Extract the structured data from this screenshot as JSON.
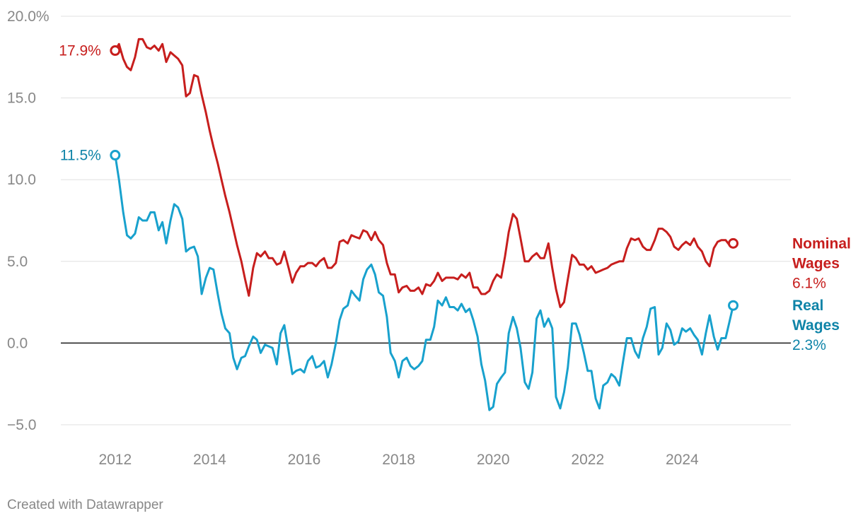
{
  "chart_data": {
    "type": "line",
    "title": "",
    "xlabel": "",
    "ylabel": "",
    "xlim": [
      2010.85,
      2026.3
    ],
    "ylim": [
      -5.8,
      20.0
    ],
    "x_ticks": [
      2012,
      2014,
      2016,
      2018,
      2020,
      2022,
      2024
    ],
    "x_tick_labels": [
      "2012",
      "2014",
      "2016",
      "2018",
      "2020",
      "2022",
      "2024"
    ],
    "y_ticks": [
      20,
      15,
      10,
      5,
      0,
      -5
    ],
    "y_tick_labels": [
      "20.0%",
      "15.0",
      "10.0",
      "5.0",
      "0.0",
      "−5.0"
    ],
    "zero_line": true,
    "grid": true,
    "series": [
      {
        "name_lines": [
          "Nominal",
          "Wages"
        ],
        "color": "#c71e1d",
        "start_label": "17.9%",
        "end_label": "6.1%",
        "x": [
          2012.0,
          2012.08,
          2012.17,
          2012.25,
          2012.33,
          2012.42,
          2012.5,
          2012.58,
          2012.67,
          2012.75,
          2012.83,
          2012.92,
          2013.0,
          2013.08,
          2013.17,
          2013.25,
          2013.33,
          2013.42,
          2013.5,
          2013.58,
          2013.67,
          2013.75,
          2013.83,
          2013.92,
          2014.0,
          2014.08,
          2014.17,
          2014.25,
          2014.33,
          2014.42,
          2014.5,
          2014.58,
          2014.67,
          2014.75,
          2014.83,
          2014.92,
          2015.0,
          2015.08,
          2015.17,
          2015.25,
          2015.33,
          2015.42,
          2015.5,
          2015.58,
          2015.67,
          2015.75,
          2015.83,
          2015.92,
          2016.0,
          2016.08,
          2016.17,
          2016.25,
          2016.33,
          2016.42,
          2016.5,
          2016.58,
          2016.67,
          2016.75,
          2016.83,
          2016.92,
          2017.0,
          2017.08,
          2017.17,
          2017.25,
          2017.33,
          2017.42,
          2017.5,
          2017.58,
          2017.67,
          2017.75,
          2017.83,
          2017.92,
          2018.0,
          2018.08,
          2018.17,
          2018.25,
          2018.33,
          2018.42,
          2018.5,
          2018.58,
          2018.67,
          2018.75,
          2018.83,
          2018.92,
          2019.0,
          2019.08,
          2019.17,
          2019.25,
          2019.33,
          2019.42,
          2019.5,
          2019.58,
          2019.67,
          2019.75,
          2019.83,
          2019.92,
          2020.0,
          2020.08,
          2020.17,
          2020.25,
          2020.33,
          2020.42,
          2020.5,
          2020.58,
          2020.67,
          2020.75,
          2020.83,
          2020.92,
          2021.0,
          2021.08,
          2021.17,
          2021.25,
          2021.33,
          2021.42,
          2021.5,
          2021.58,
          2021.67,
          2021.75,
          2021.83,
          2021.92,
          2022.0,
          2022.08,
          2022.17,
          2022.25,
          2022.33,
          2022.42,
          2022.5,
          2022.58,
          2022.67,
          2022.75,
          2022.83,
          2022.92,
          2023.0,
          2023.08,
          2023.17,
          2023.25,
          2023.33,
          2023.42,
          2023.5,
          2023.58,
          2023.67,
          2023.75,
          2023.83,
          2023.92,
          2024.0,
          2024.08,
          2024.17,
          2024.25,
          2024.33,
          2024.42,
          2024.5,
          2024.58,
          2024.67,
          2024.75,
          2024.83,
          2024.92,
          2025.0,
          2025.08
        ],
        "values": [
          17.9,
          18.3,
          17.4,
          16.9,
          16.7,
          17.5,
          18.6,
          18.6,
          18.1,
          18.0,
          18.2,
          17.9,
          18.3,
          17.2,
          17.8,
          17.6,
          17.4,
          17.0,
          15.1,
          15.3,
          16.4,
          16.3,
          15.2,
          14.1,
          13.0,
          12.0,
          11.0,
          10.0,
          9.0,
          8.0,
          7.0,
          6.0,
          5.0,
          3.9,
          2.9,
          4.6,
          5.5,
          5.3,
          5.6,
          5.2,
          5.2,
          4.8,
          4.9,
          5.6,
          4.6,
          3.7,
          4.3,
          4.7,
          4.7,
          4.9,
          4.9,
          4.7,
          5.0,
          5.2,
          4.6,
          4.6,
          4.9,
          6.2,
          6.3,
          6.1,
          6.6,
          6.5,
          6.4,
          6.9,
          6.8,
          6.3,
          6.8,
          6.3,
          6.0,
          4.9,
          4.2,
          4.2,
          3.1,
          3.4,
          3.5,
          3.2,
          3.2,
          3.4,
          3.0,
          3.6,
          3.5,
          3.8,
          4.3,
          3.8,
          4.0,
          4.0,
          4.0,
          3.9,
          4.2,
          4.0,
          4.3,
          3.4,
          3.4,
          3.0,
          3.0,
          3.2,
          3.8,
          4.2,
          4.0,
          5.3,
          6.8,
          7.9,
          7.6,
          6.4,
          5.0,
          5.0,
          5.3,
          5.5,
          5.2,
          5.2,
          6.1,
          4.6,
          3.3,
          2.2,
          2.5,
          3.9,
          5.4,
          5.2,
          4.8,
          4.8,
          4.5,
          4.7,
          4.3,
          4.4,
          4.5,
          4.6,
          4.8,
          4.9,
          5.0,
          5.0,
          5.8,
          6.4,
          6.3,
          6.4,
          5.9,
          5.7,
          5.7,
          6.3,
          7.0,
          7.0,
          6.8,
          6.5,
          5.9,
          5.7,
          6.0,
          6.2,
          6.0,
          6.4,
          5.9,
          5.6,
          5.0,
          4.7,
          5.8,
          6.2,
          6.3,
          6.3,
          6.0,
          6.1
        ]
      },
      {
        "name_lines": [
          "Real",
          "Wages"
        ],
        "color": "#18a1cd",
        "label_color": "#0f84a8",
        "start_label": "11.5%",
        "end_label": "2.3%",
        "x": [
          2012.0,
          2012.08,
          2012.17,
          2012.25,
          2012.33,
          2012.42,
          2012.5,
          2012.58,
          2012.67,
          2012.75,
          2012.83,
          2012.92,
          2013.0,
          2013.08,
          2013.17,
          2013.25,
          2013.33,
          2013.42,
          2013.5,
          2013.58,
          2013.67,
          2013.75,
          2013.83,
          2013.92,
          2014.0,
          2014.08,
          2014.17,
          2014.25,
          2014.33,
          2014.42,
          2014.5,
          2014.58,
          2014.67,
          2014.75,
          2014.83,
          2014.92,
          2015.0,
          2015.08,
          2015.17,
          2015.25,
          2015.33,
          2015.42,
          2015.5,
          2015.58,
          2015.67,
          2015.75,
          2015.83,
          2015.92,
          2016.0,
          2016.08,
          2016.17,
          2016.25,
          2016.33,
          2016.42,
          2016.5,
          2016.58,
          2016.67,
          2016.75,
          2016.83,
          2016.92,
          2017.0,
          2017.08,
          2017.17,
          2017.25,
          2017.33,
          2017.42,
          2017.5,
          2017.58,
          2017.67,
          2017.75,
          2017.83,
          2017.92,
          2018.0,
          2018.08,
          2018.17,
          2018.25,
          2018.33,
          2018.42,
          2018.5,
          2018.58,
          2018.67,
          2018.75,
          2018.83,
          2018.92,
          2019.0,
          2019.08,
          2019.17,
          2019.25,
          2019.33,
          2019.42,
          2019.5,
          2019.58,
          2019.67,
          2019.75,
          2019.83,
          2019.92,
          2020.0,
          2020.08,
          2020.17,
          2020.25,
          2020.33,
          2020.42,
          2020.5,
          2020.58,
          2020.67,
          2020.75,
          2020.83,
          2020.92,
          2021.0,
          2021.08,
          2021.17,
          2021.25,
          2021.33,
          2021.42,
          2021.5,
          2021.58,
          2021.67,
          2021.75,
          2021.83,
          2021.92,
          2022.0,
          2022.08,
          2022.17,
          2022.25,
          2022.33,
          2022.42,
          2022.5,
          2022.58,
          2022.67,
          2022.75,
          2022.83,
          2022.92,
          2023.0,
          2023.08,
          2023.17,
          2023.25,
          2023.33,
          2023.42,
          2023.5,
          2023.58,
          2023.67,
          2023.75,
          2023.83,
          2023.92,
          2024.0,
          2024.08,
          2024.17,
          2024.25,
          2024.33,
          2024.42,
          2024.5,
          2024.58,
          2024.67,
          2024.75,
          2024.83,
          2024.92,
          2025.0,
          2025.08
        ],
        "values": [
          11.5,
          10.0,
          8.0,
          6.6,
          6.4,
          6.7,
          7.7,
          7.5,
          7.5,
          8.0,
          8.0,
          6.9,
          7.4,
          6.1,
          7.5,
          8.5,
          8.3,
          7.6,
          5.6,
          5.8,
          5.9,
          5.3,
          3.0,
          4.0,
          4.6,
          4.5,
          3.0,
          1.8,
          0.9,
          0.6,
          -0.9,
          -1.6,
          -0.9,
          -0.8,
          -0.2,
          0.4,
          0.2,
          -0.6,
          -0.1,
          -0.2,
          -0.3,
          -1.3,
          0.6,
          1.1,
          -0.5,
          -1.9,
          -1.7,
          -1.6,
          -1.8,
          -1.1,
          -0.8,
          -1.5,
          -1.4,
          -1.1,
          -2.1,
          -1.3,
          0.0,
          1.4,
          2.1,
          2.3,
          3.2,
          2.9,
          2.6,
          3.9,
          4.5,
          4.8,
          4.2,
          3.1,
          2.9,
          1.6,
          -0.6,
          -1.1,
          -2.1,
          -1.1,
          -0.9,
          -1.4,
          -1.6,
          -1.4,
          -1.1,
          0.2,
          0.2,
          1.0,
          2.6,
          2.3,
          2.8,
          2.2,
          2.2,
          2.0,
          2.4,
          1.9,
          2.1,
          1.4,
          0.4,
          -1.3,
          -2.3,
          -4.1,
          -3.9,
          -2.5,
          -2.1,
          -1.8,
          0.6,
          1.6,
          0.9,
          -0.3,
          -2.4,
          -2.8,
          -1.8,
          1.5,
          2.0,
          1.0,
          1.5,
          0.9,
          -3.3,
          -4.0,
          -3.0,
          -1.5,
          1.2,
          1.2,
          0.5,
          -0.6,
          -1.7,
          -1.7,
          -3.4,
          -4.0,
          -2.6,
          -2.4,
          -1.9,
          -2.1,
          -2.6,
          -1.1,
          0.3,
          0.3,
          -0.5,
          -0.9,
          0.3,
          1.0,
          2.1,
          2.2,
          -0.7,
          -0.3,
          1.2,
          0.8,
          -0.1,
          0.1,
          0.9,
          0.7,
          0.9,
          0.5,
          0.2,
          -0.7,
          0.6,
          1.7,
          0.4,
          -0.4,
          0.3,
          0.3,
          1.3,
          2.3
        ]
      }
    ]
  },
  "footer": {
    "credit": "Created with Datawrapper"
  }
}
